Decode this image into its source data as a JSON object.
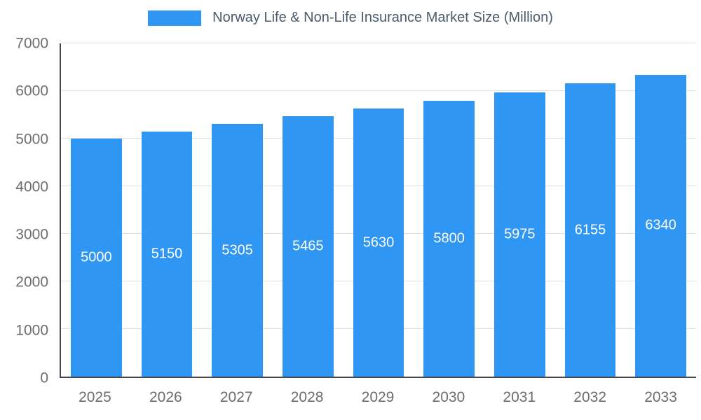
{
  "legend": {
    "title": "Norway Life & Non-Life Insurance Market Size (Million)"
  },
  "chart_data": {
    "type": "bar",
    "title": "Norway Life & Non-Life Insurance Market Size (Million)",
    "categories": [
      "2025",
      "2026",
      "2027",
      "2028",
      "2029",
      "2030",
      "2031",
      "2032",
      "2033"
    ],
    "values": [
      5000,
      5150,
      5305,
      5465,
      5630,
      5800,
      5975,
      6155,
      6340
    ],
    "xlabel": "",
    "ylabel": "",
    "ylim": [
      0,
      7000
    ],
    "yticks": [
      0,
      1000,
      2000,
      3000,
      4000,
      5000,
      6000,
      7000
    ],
    "grid": true,
    "legend_position": "top",
    "colors": {
      "bar": "#2F96F3",
      "bar_label": "#ffffff",
      "axis_line": "#434a54",
      "gridline": "#e0e0e0",
      "tick_text": "#6d6d6d",
      "title_text": "#4c5b6b"
    }
  }
}
